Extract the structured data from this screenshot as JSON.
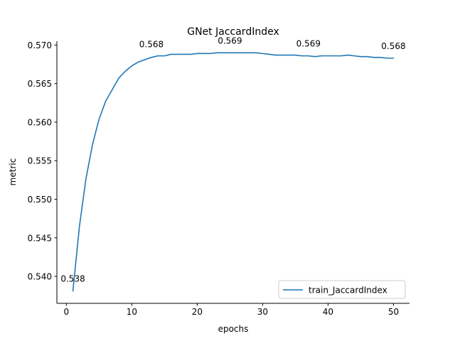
{
  "chart_data": {
    "type": "line",
    "title": "GNet JaccardIndex",
    "xlabel": "epochs",
    "ylabel": "metric",
    "xlim": [
      -1.45,
      52.45
    ],
    "ylim": [
      0.5365,
      0.5705
    ],
    "xticks": [
      0,
      10,
      20,
      30,
      40,
      50
    ],
    "xtick_labels": [
      "0",
      "10",
      "20",
      "30",
      "40",
      "50"
    ],
    "yticks": [
      0.54,
      0.545,
      0.55,
      0.555,
      0.56,
      0.565,
      0.57
    ],
    "ytick_labels": [
      "0.540",
      "0.545",
      "0.550",
      "0.555",
      "0.560",
      "0.565",
      "0.570"
    ],
    "grid": false,
    "legend_position": "lower-right",
    "series": [
      {
        "name": "train_JaccardIndex",
        "color": "#1f77b4",
        "x": [
          1,
          2,
          3,
          4,
          5,
          6,
          7,
          8,
          9,
          10,
          11,
          12,
          13,
          14,
          15,
          16,
          17,
          18,
          19,
          20,
          21,
          22,
          23,
          24,
          25,
          26,
          27,
          28,
          29,
          30,
          31,
          32,
          33,
          34,
          35,
          36,
          37,
          38,
          39,
          40,
          41,
          42,
          43,
          44,
          45,
          46,
          47,
          48,
          49,
          50
        ],
        "values": [
          0.5381,
          0.5465,
          0.5527,
          0.5571,
          0.5604,
          0.5627,
          0.5642,
          0.5657,
          0.5666,
          0.5673,
          0.5678,
          0.5681,
          0.5684,
          0.5686,
          0.5686,
          0.5688,
          0.5688,
          0.5688,
          0.5688,
          0.5689,
          0.5689,
          0.5689,
          0.569,
          0.569,
          0.569,
          0.569,
          0.569,
          0.569,
          0.569,
          0.5689,
          0.5688,
          0.5687,
          0.5687,
          0.5687,
          0.5687,
          0.5686,
          0.5686,
          0.5685,
          0.5686,
          0.5686,
          0.5686,
          0.5686,
          0.5687,
          0.5686,
          0.5685,
          0.5685,
          0.5684,
          0.5684,
          0.5683,
          0.5683
        ]
      }
    ],
    "annotations": [
      {
        "x": 1,
        "y": 0.5381,
        "text": "0.538"
      },
      {
        "x": 13,
        "y": 0.5685,
        "text": "0.568"
      },
      {
        "x": 25,
        "y": 0.569,
        "text": "0.569"
      },
      {
        "x": 37,
        "y": 0.5686,
        "text": "0.569"
      },
      {
        "x": 50,
        "y": 0.5683,
        "text": "0.568"
      }
    ]
  }
}
